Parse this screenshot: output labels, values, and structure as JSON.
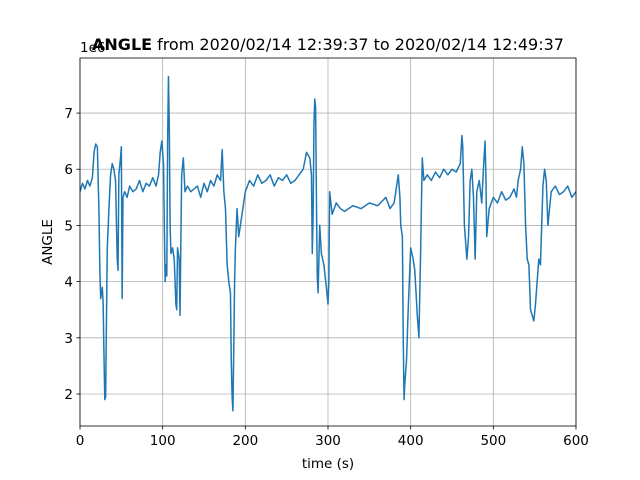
{
  "chart_data": {
    "type": "line",
    "title_bold": "ANGLE",
    "title": "from 2020/02/14 12:39:37 to 2020/02/14 12:49:37",
    "offset_text": "1e6",
    "xlabel": "time (s)",
    "ylabel": "ANGLE",
    "xlim": [
      0,
      600
    ],
    "xticks": [
      0,
      100,
      200,
      300,
      400,
      500,
      600
    ],
    "ylim": [
      1.43,
      7.98
    ],
    "yticks": [
      2,
      3,
      4,
      5,
      6,
      7
    ],
    "grid": true,
    "x": [
      0,
      3,
      6,
      9,
      12,
      15,
      17,
      19,
      21,
      23,
      24,
      25,
      27,
      28,
      29,
      30,
      31,
      32,
      33,
      35,
      37,
      39,
      41,
      43,
      45,
      46,
      47,
      49,
      50,
      51,
      52,
      54,
      57,
      60,
      64,
      68,
      72,
      76,
      80,
      84,
      88,
      92,
      95,
      97,
      99,
      101,
      102,
      103,
      104,
      105,
      106,
      107,
      108,
      109,
      110,
      112,
      114,
      116,
      117,
      118,
      120,
      121,
      122,
      123,
      125,
      127,
      130,
      134,
      138,
      142,
      146,
      150,
      154,
      158,
      162,
      166,
      170,
      172,
      174,
      176,
      178,
      180,
      182,
      183,
      184,
      185,
      186,
      187,
      188,
      190,
      192,
      195,
      200,
      205,
      210,
      215,
      220,
      225,
      230,
      235,
      240,
      245,
      250,
      255,
      260,
      265,
      270,
      274,
      278,
      280,
      281,
      282,
      283,
      284,
      285,
      286,
      287,
      288,
      290,
      292,
      295,
      298,
      300,
      301,
      302,
      305,
      310,
      315,
      320,
      330,
      340,
      350,
      360,
      370,
      375,
      380,
      383,
      385,
      387,
      388,
      390,
      391,
      392,
      393,
      395,
      397,
      400,
      403,
      405,
      408,
      410,
      412,
      414,
      416,
      420,
      425,
      430,
      435,
      440,
      445,
      450,
      455,
      460,
      462,
      463,
      465,
      467,
      468,
      470,
      472,
      474,
      476,
      478,
      480,
      483,
      486,
      488,
      490,
      491,
      492,
      495,
      500,
      505,
      510,
      515,
      520,
      525,
      528,
      530,
      533,
      535,
      537,
      539,
      541,
      543,
      545,
      547,
      549,
      551,
      553,
      555,
      557,
      560,
      562,
      564,
      566,
      570,
      575,
      580,
      585,
      590,
      595,
      600
    ],
    "series": [
      {
        "name": "ANGLE",
        "color": "#1f77b4",
        "values": [
          5.6,
          5.75,
          5.65,
          5.8,
          5.7,
          5.85,
          6.3,
          6.45,
          6.4,
          5.2,
          4.2,
          3.7,
          3.9,
          3.6,
          2.7,
          1.9,
          1.95,
          3.3,
          4.6,
          5.3,
          5.9,
          6.1,
          6.0,
          5.8,
          4.4,
          4.2,
          5.9,
          6.2,
          6.4,
          3.7,
          5.5,
          5.6,
          5.5,
          5.7,
          5.6,
          5.65,
          5.8,
          5.6,
          5.75,
          5.7,
          5.85,
          5.7,
          5.9,
          6.3,
          6.5,
          6.1,
          5.0,
          4.0,
          4.3,
          4.1,
          6.5,
          7.65,
          6.8,
          5.0,
          4.5,
          4.6,
          4.4,
          3.6,
          3.5,
          4.6,
          4.4,
          3.4,
          4.7,
          5.9,
          6.2,
          5.6,
          5.7,
          5.6,
          5.65,
          5.7,
          5.5,
          5.75,
          5.6,
          5.8,
          5.7,
          5.9,
          5.8,
          6.35,
          5.6,
          5.3,
          4.3,
          4.0,
          3.8,
          2.6,
          1.95,
          1.7,
          2.8,
          4.0,
          4.6,
          5.3,
          4.8,
          5.1,
          5.6,
          5.8,
          5.7,
          5.9,
          5.75,
          5.8,
          5.9,
          5.7,
          5.85,
          5.8,
          5.9,
          5.75,
          5.8,
          5.9,
          6.0,
          6.3,
          6.2,
          5.9,
          4.5,
          5.2,
          6.8,
          7.25,
          7.1,
          5.5,
          4.1,
          3.8,
          5.0,
          4.5,
          4.3,
          3.9,
          3.6,
          4.0,
          5.6,
          5.2,
          5.4,
          5.3,
          5.25,
          5.35,
          5.3,
          5.4,
          5.35,
          5.5,
          5.3,
          5.4,
          5.7,
          5.9,
          5.5,
          5.0,
          4.8,
          3.0,
          1.9,
          2.2,
          2.6,
          3.5,
          4.6,
          4.4,
          4.2,
          3.4,
          3.0,
          4.5,
          6.2,
          5.8,
          5.9,
          5.8,
          5.95,
          5.85,
          6.0,
          5.9,
          6.0,
          5.95,
          6.1,
          6.6,
          6.4,
          5.0,
          4.6,
          4.4,
          4.8,
          5.8,
          6.0,
          5.5,
          4.4,
          5.6,
          5.8,
          5.4,
          6.0,
          6.5,
          5.9,
          4.8,
          5.3,
          5.5,
          5.4,
          5.6,
          5.45,
          5.5,
          5.65,
          5.5,
          5.8,
          6.0,
          6.4,
          6.1,
          5.0,
          4.4,
          4.3,
          3.5,
          3.4,
          3.3,
          3.6,
          4.0,
          4.4,
          4.3,
          5.7,
          6.0,
          5.8,
          5.0,
          5.6,
          5.7,
          5.55,
          5.6,
          5.7,
          5.5,
          5.6
        ]
      }
    ]
  }
}
